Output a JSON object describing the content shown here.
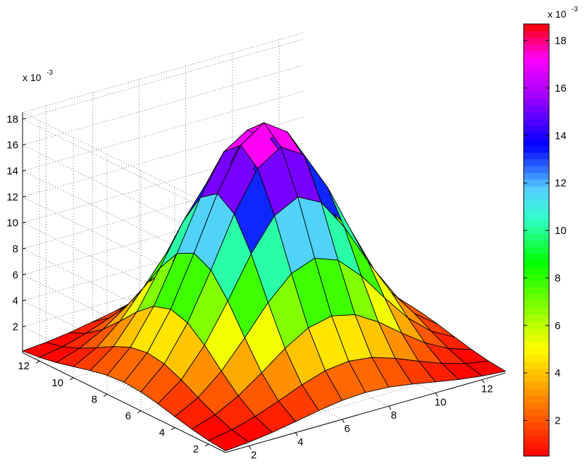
{
  "chart_data": {
    "type": "surface",
    "title": "",
    "xlabel": "",
    "ylabel": "",
    "zlabel": "",
    "x": [
      1,
      2,
      3,
      4,
      5,
      6,
      7,
      8,
      9,
      10,
      11,
      12,
      13
    ],
    "y": [
      1,
      2,
      3,
      4,
      5,
      6,
      7,
      8,
      9,
      10,
      11,
      12,
      13
    ],
    "x_tick_labels": [
      "2",
      "4",
      "6",
      "8",
      "10",
      "12"
    ],
    "y_tick_labels": [
      "2",
      "4",
      "6",
      "8",
      "10",
      "12"
    ],
    "z_tick_labels": [
      "2",
      "4",
      "6",
      "8",
      "10",
      "12",
      "14",
      "16",
      "18"
    ],
    "z_multiplier_label": "x 10",
    "z_multiplier_exponent": "-3",
    "z_multiplier": 0.001,
    "z_function": "gaussian",
    "z_peak": 0.0185,
    "z_center": [
      7,
      7
    ],
    "z_sigma": 2.7,
    "zlim": [
      0,
      0.0185
    ],
    "grid": true,
    "colormap": "hsv",
    "colorbar": {
      "placement": "right",
      "tick_labels": [
        "2",
        "4",
        "6",
        "8",
        "10",
        "12",
        "14",
        "16",
        "18"
      ],
      "multiplier_label": "x 10",
      "multiplier_exponent": "-3",
      "range": [
        0.0005,
        0.0187
      ]
    }
  }
}
